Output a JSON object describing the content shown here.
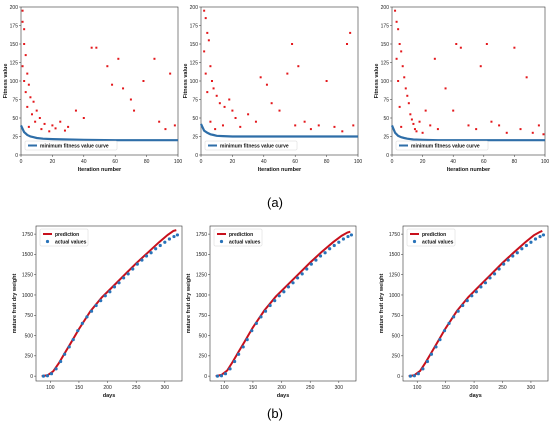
{
  "figure": {
    "panel_labels": [
      "(a)",
      "(b)"
    ]
  },
  "colors": {
    "red": "#e3171b",
    "blue": "#2e6ea8",
    "prediction_red": "#c8101c",
    "actual_blue": "#2873b9"
  },
  "chart_data": [
    {
      "type": "scatter",
      "panel": "(a)",
      "xlabel": "Iteration number",
      "ylabel": "Fitness value",
      "xlim": [
        0,
        100
      ],
      "ylim": [
        0,
        200
      ],
      "xticks": [
        "0",
        "20",
        "40",
        "60",
        "80",
        "100"
      ],
      "yticks": [
        "0",
        "25",
        "50",
        "75",
        "100",
        "125",
        "150",
        "175",
        "200"
      ],
      "legend": {
        "position": "lower-left",
        "entries": [
          "minimum fitness value curve"
        ]
      },
      "series": [
        {
          "name": "minimum fitness value curve",
          "kind": "line",
          "x": [
            0,
            2,
            4,
            6,
            8,
            10,
            14,
            20,
            30,
            40,
            60,
            80,
            100
          ],
          "y": [
            40,
            31,
            27,
            25,
            24,
            23,
            22,
            21.5,
            21,
            20.5,
            20,
            20,
            20
          ]
        },
        {
          "kind": "points",
          "color": "red",
          "points": [
            [
              1,
              195
            ],
            [
              1,
              180
            ],
            [
              2,
              170
            ],
            [
              2,
              150
            ],
            [
              3,
              135
            ],
            [
              1,
              120
            ],
            [
              4,
              110
            ],
            [
              2,
              100
            ],
            [
              5,
              95
            ],
            [
              3,
              85
            ],
            [
              6,
              78
            ],
            [
              8,
              72
            ],
            [
              4,
              65
            ],
            [
              10,
              60
            ],
            [
              7,
              55
            ],
            [
              12,
              50
            ],
            [
              9,
              45
            ],
            [
              15,
              42
            ],
            [
              5,
              38
            ],
            [
              13,
              35
            ],
            [
              18,
              32
            ],
            [
              20,
              40
            ],
            [
              22,
              36
            ],
            [
              25,
              45
            ],
            [
              28,
              33
            ],
            [
              30,
              38
            ],
            [
              35,
              60
            ],
            [
              40,
              50
            ],
            [
              45,
              145
            ],
            [
              48,
              145
            ],
            [
              55,
              120
            ],
            [
              58,
              95
            ],
            [
              62,
              130
            ],
            [
              65,
              90
            ],
            [
              70,
              75
            ],
            [
              72,
              60
            ],
            [
              78,
              100
            ],
            [
              85,
              130
            ],
            [
              88,
              45
            ],
            [
              92,
              35
            ],
            [
              95,
              110
            ],
            [
              98,
              40
            ]
          ]
        }
      ]
    },
    {
      "type": "scatter",
      "panel": "(a)",
      "xlabel": "Iteration number",
      "ylabel": "Fitness value",
      "xlim": [
        0,
        100
      ],
      "ylim": [
        0,
        200
      ],
      "xticks": [
        "0",
        "20",
        "40",
        "60",
        "80",
        "100"
      ],
      "yticks": [
        "0",
        "25",
        "50",
        "75",
        "100",
        "125",
        "150",
        "175",
        "200"
      ],
      "legend": {
        "position": "lower-left",
        "entries": [
          "minimum fitness value curve"
        ]
      },
      "series": [
        {
          "name": "minimum fitness value curve",
          "kind": "line",
          "x": [
            0,
            2,
            4,
            6,
            8,
            10,
            14,
            20,
            30,
            40,
            60,
            80,
            100
          ],
          "y": [
            42,
            33,
            30,
            28,
            27,
            26,
            25.5,
            25,
            25,
            25,
            25,
            25,
            25
          ]
        },
        {
          "kind": "points",
          "color": "red",
          "points": [
            [
              2,
              195
            ],
            [
              3,
              185
            ],
            [
              4,
              165
            ],
            [
              5,
              155
            ],
            [
              2,
              140
            ],
            [
              6,
              120
            ],
            [
              3,
              110
            ],
            [
              7,
              100
            ],
            [
              8,
              90
            ],
            [
              4,
              85
            ],
            [
              10,
              80
            ],
            [
              12,
              70
            ],
            [
              15,
              65
            ],
            [
              18,
              75
            ],
            [
              20,
              60
            ],
            [
              22,
              50
            ],
            [
              6,
              45
            ],
            [
              14,
              40
            ],
            [
              25,
              38
            ],
            [
              9,
              35
            ],
            [
              30,
              55
            ],
            [
              35,
              45
            ],
            [
              38,
              105
            ],
            [
              42,
              95
            ],
            [
              45,
              70
            ],
            [
              50,
              60
            ],
            [
              55,
              110
            ],
            [
              58,
              150
            ],
            [
              60,
              40
            ],
            [
              62,
              120
            ],
            [
              66,
              45
            ],
            [
              70,
              35
            ],
            [
              75,
              40
            ],
            [
              80,
              100
            ],
            [
              85,
              38
            ],
            [
              90,
              32
            ],
            [
              93,
              150
            ],
            [
              95,
              165
            ],
            [
              97,
              40
            ]
          ]
        }
      ]
    },
    {
      "type": "scatter",
      "panel": "(a)",
      "xlabel": "Iteration number",
      "ylabel": "Fitness value",
      "xlim": [
        0,
        100
      ],
      "ylim": [
        0,
        200
      ],
      "xticks": [
        "0",
        "20",
        "40",
        "60",
        "80",
        "100"
      ],
      "yticks": [
        "0",
        "25",
        "50",
        "75",
        "100",
        "125",
        "150",
        "175",
        "200"
      ],
      "legend": {
        "position": "lower-left",
        "entries": [
          "minimum fitness value curve"
        ]
      },
      "series": [
        {
          "name": "minimum fitness value curve",
          "kind": "line",
          "x": [
            0,
            2,
            4,
            6,
            8,
            10,
            14,
            20,
            30,
            40,
            60,
            80,
            100
          ],
          "y": [
            40,
            30,
            26,
            24,
            23,
            22,
            21,
            20.5,
            20,
            20,
            20,
            20,
            20
          ]
        },
        {
          "kind": "points",
          "color": "red",
          "points": [
            [
              2,
              195
            ],
            [
              3,
              180
            ],
            [
              4,
              170
            ],
            [
              5,
              150
            ],
            [
              6,
              140
            ],
            [
              3,
              130
            ],
            [
              7,
              120
            ],
            [
              8,
              105
            ],
            [
              4,
              100
            ],
            [
              9,
              90
            ],
            [
              10,
              80
            ],
            [
              11,
              70
            ],
            [
              5,
              65
            ],
            [
              12,
              55
            ],
            [
              13,
              48
            ],
            [
              14,
              42
            ],
            [
              6,
              38
            ],
            [
              15,
              35
            ],
            [
              16,
              32
            ],
            [
              18,
              45
            ],
            [
              20,
              30
            ],
            [
              22,
              60
            ],
            [
              25,
              40
            ],
            [
              28,
              130
            ],
            [
              30,
              35
            ],
            [
              35,
              90
            ],
            [
              40,
              60
            ],
            [
              42,
              150
            ],
            [
              45,
              145
            ],
            [
              50,
              40
            ],
            [
              55,
              35
            ],
            [
              58,
              120
            ],
            [
              62,
              150
            ],
            [
              65,
              45
            ],
            [
              70,
              40
            ],
            [
              75,
              30
            ],
            [
              80,
              145
            ],
            [
              84,
              35
            ],
            [
              88,
              105
            ],
            [
              92,
              30
            ],
            [
              96,
              40
            ],
            [
              99,
              28
            ]
          ]
        }
      ]
    },
    {
      "type": "line",
      "panel": "(b)",
      "xlabel": "days",
      "ylabel": "mature fruit dry weight",
      "xlim": [
        75,
        330
      ],
      "ylim": [
        -60,
        1850
      ],
      "xticks": [
        "100",
        "150",
        "200",
        "250",
        "300"
      ],
      "yticks": [
        "0",
        "250",
        "500",
        "750",
        "1000",
        "1250",
        "1500",
        "1750"
      ],
      "legend": {
        "position": "top-left",
        "entries": [
          "prediction",
          "actual values"
        ]
      },
      "series": [
        {
          "name": "prediction",
          "kind": "line",
          "x": [
            85,
            95,
            105,
            115,
            125,
            135,
            150,
            170,
            190,
            210,
            230,
            250,
            270,
            290,
            305,
            315,
            320
          ],
          "y": [
            0,
            10,
            60,
            160,
            280,
            400,
            580,
            800,
            970,
            1110,
            1250,
            1390,
            1520,
            1650,
            1740,
            1790,
            1800
          ]
        },
        {
          "name": "actual values",
          "kind": "points",
          "x": [
            88,
            95,
            102,
            110,
            118,
            125,
            133,
            140,
            148,
            156,
            164,
            172,
            180,
            188,
            196,
            204,
            212,
            220,
            228,
            236,
            244,
            252,
            260,
            268,
            276,
            284,
            292,
            300,
            308,
            316,
            322
          ],
          "y": [
            0,
            5,
            30,
            90,
            180,
            270,
            360,
            450,
            560,
            650,
            730,
            800,
            870,
            930,
            990,
            1040,
            1100,
            1150,
            1210,
            1260,
            1320,
            1380,
            1430,
            1480,
            1520,
            1570,
            1610,
            1650,
            1690,
            1720,
            1740
          ]
        }
      ]
    },
    {
      "type": "line",
      "panel": "(b)",
      "xlabel": "days",
      "ylabel": "mature fruit dry weight",
      "xlim": [
        75,
        330
      ],
      "ylim": [
        -60,
        1850
      ],
      "xticks": [
        "100",
        "150",
        "200",
        "250",
        "300"
      ],
      "yticks": [
        "0",
        "250",
        "500",
        "750",
        "1000",
        "1250",
        "1500",
        "1750"
      ],
      "legend": {
        "position": "top-left",
        "entries": [
          "prediction",
          "actual values"
        ]
      },
      "series": [
        {
          "name": "prediction",
          "kind": "line",
          "x": [
            85,
            95,
            105,
            115,
            125,
            135,
            150,
            170,
            190,
            210,
            230,
            250,
            270,
            290,
            305,
            315,
            320
          ],
          "y": [
            0,
            15,
            70,
            180,
            300,
            420,
            600,
            810,
            980,
            1120,
            1260,
            1400,
            1530,
            1650,
            1730,
            1770,
            1780
          ]
        },
        {
          "name": "actual values",
          "kind": "points",
          "x": [
            88,
            95,
            102,
            110,
            118,
            125,
            133,
            140,
            148,
            156,
            164,
            172,
            180,
            188,
            196,
            204,
            212,
            220,
            228,
            236,
            244,
            252,
            260,
            268,
            276,
            284,
            292,
            300,
            308,
            316,
            322
          ],
          "y": [
            0,
            5,
            30,
            90,
            180,
            270,
            360,
            450,
            560,
            650,
            730,
            800,
            870,
            930,
            990,
            1040,
            1100,
            1150,
            1210,
            1260,
            1320,
            1380,
            1430,
            1480,
            1520,
            1570,
            1610,
            1650,
            1690,
            1720,
            1740
          ]
        }
      ]
    },
    {
      "type": "line",
      "panel": "(b)",
      "xlabel": "days",
      "ylabel": "mature fruit dry weight",
      "xlim": [
        75,
        330
      ],
      "ylim": [
        -60,
        1850
      ],
      "xticks": [
        "100",
        "150",
        "200",
        "250",
        "300"
      ],
      "yticks": [
        "0",
        "250",
        "500",
        "750",
        "1000",
        "1250",
        "1500",
        "1750"
      ],
      "legend": {
        "position": "top-left",
        "entries": [
          "prediction",
          "actual values"
        ]
      },
      "series": [
        {
          "name": "prediction",
          "kind": "line",
          "x": [
            85,
            95,
            105,
            115,
            125,
            135,
            150,
            170,
            190,
            210,
            230,
            250,
            270,
            290,
            305,
            315,
            320
          ],
          "y": [
            0,
            12,
            65,
            170,
            290,
            410,
            590,
            805,
            975,
            1115,
            1255,
            1395,
            1525,
            1650,
            1735,
            1775,
            1790
          ]
        },
        {
          "name": "actual values",
          "kind": "points",
          "x": [
            88,
            95,
            102,
            110,
            118,
            125,
            133,
            140,
            148,
            156,
            164,
            172,
            180,
            188,
            196,
            204,
            212,
            220,
            228,
            236,
            244,
            252,
            260,
            268,
            276,
            284,
            292,
            300,
            308,
            316,
            322
          ],
          "y": [
            0,
            5,
            30,
            90,
            180,
            270,
            360,
            450,
            560,
            650,
            730,
            800,
            870,
            930,
            990,
            1040,
            1100,
            1150,
            1210,
            1260,
            1320,
            1380,
            1430,
            1480,
            1520,
            1570,
            1610,
            1650,
            1690,
            1720,
            1740
          ]
        }
      ]
    }
  ]
}
